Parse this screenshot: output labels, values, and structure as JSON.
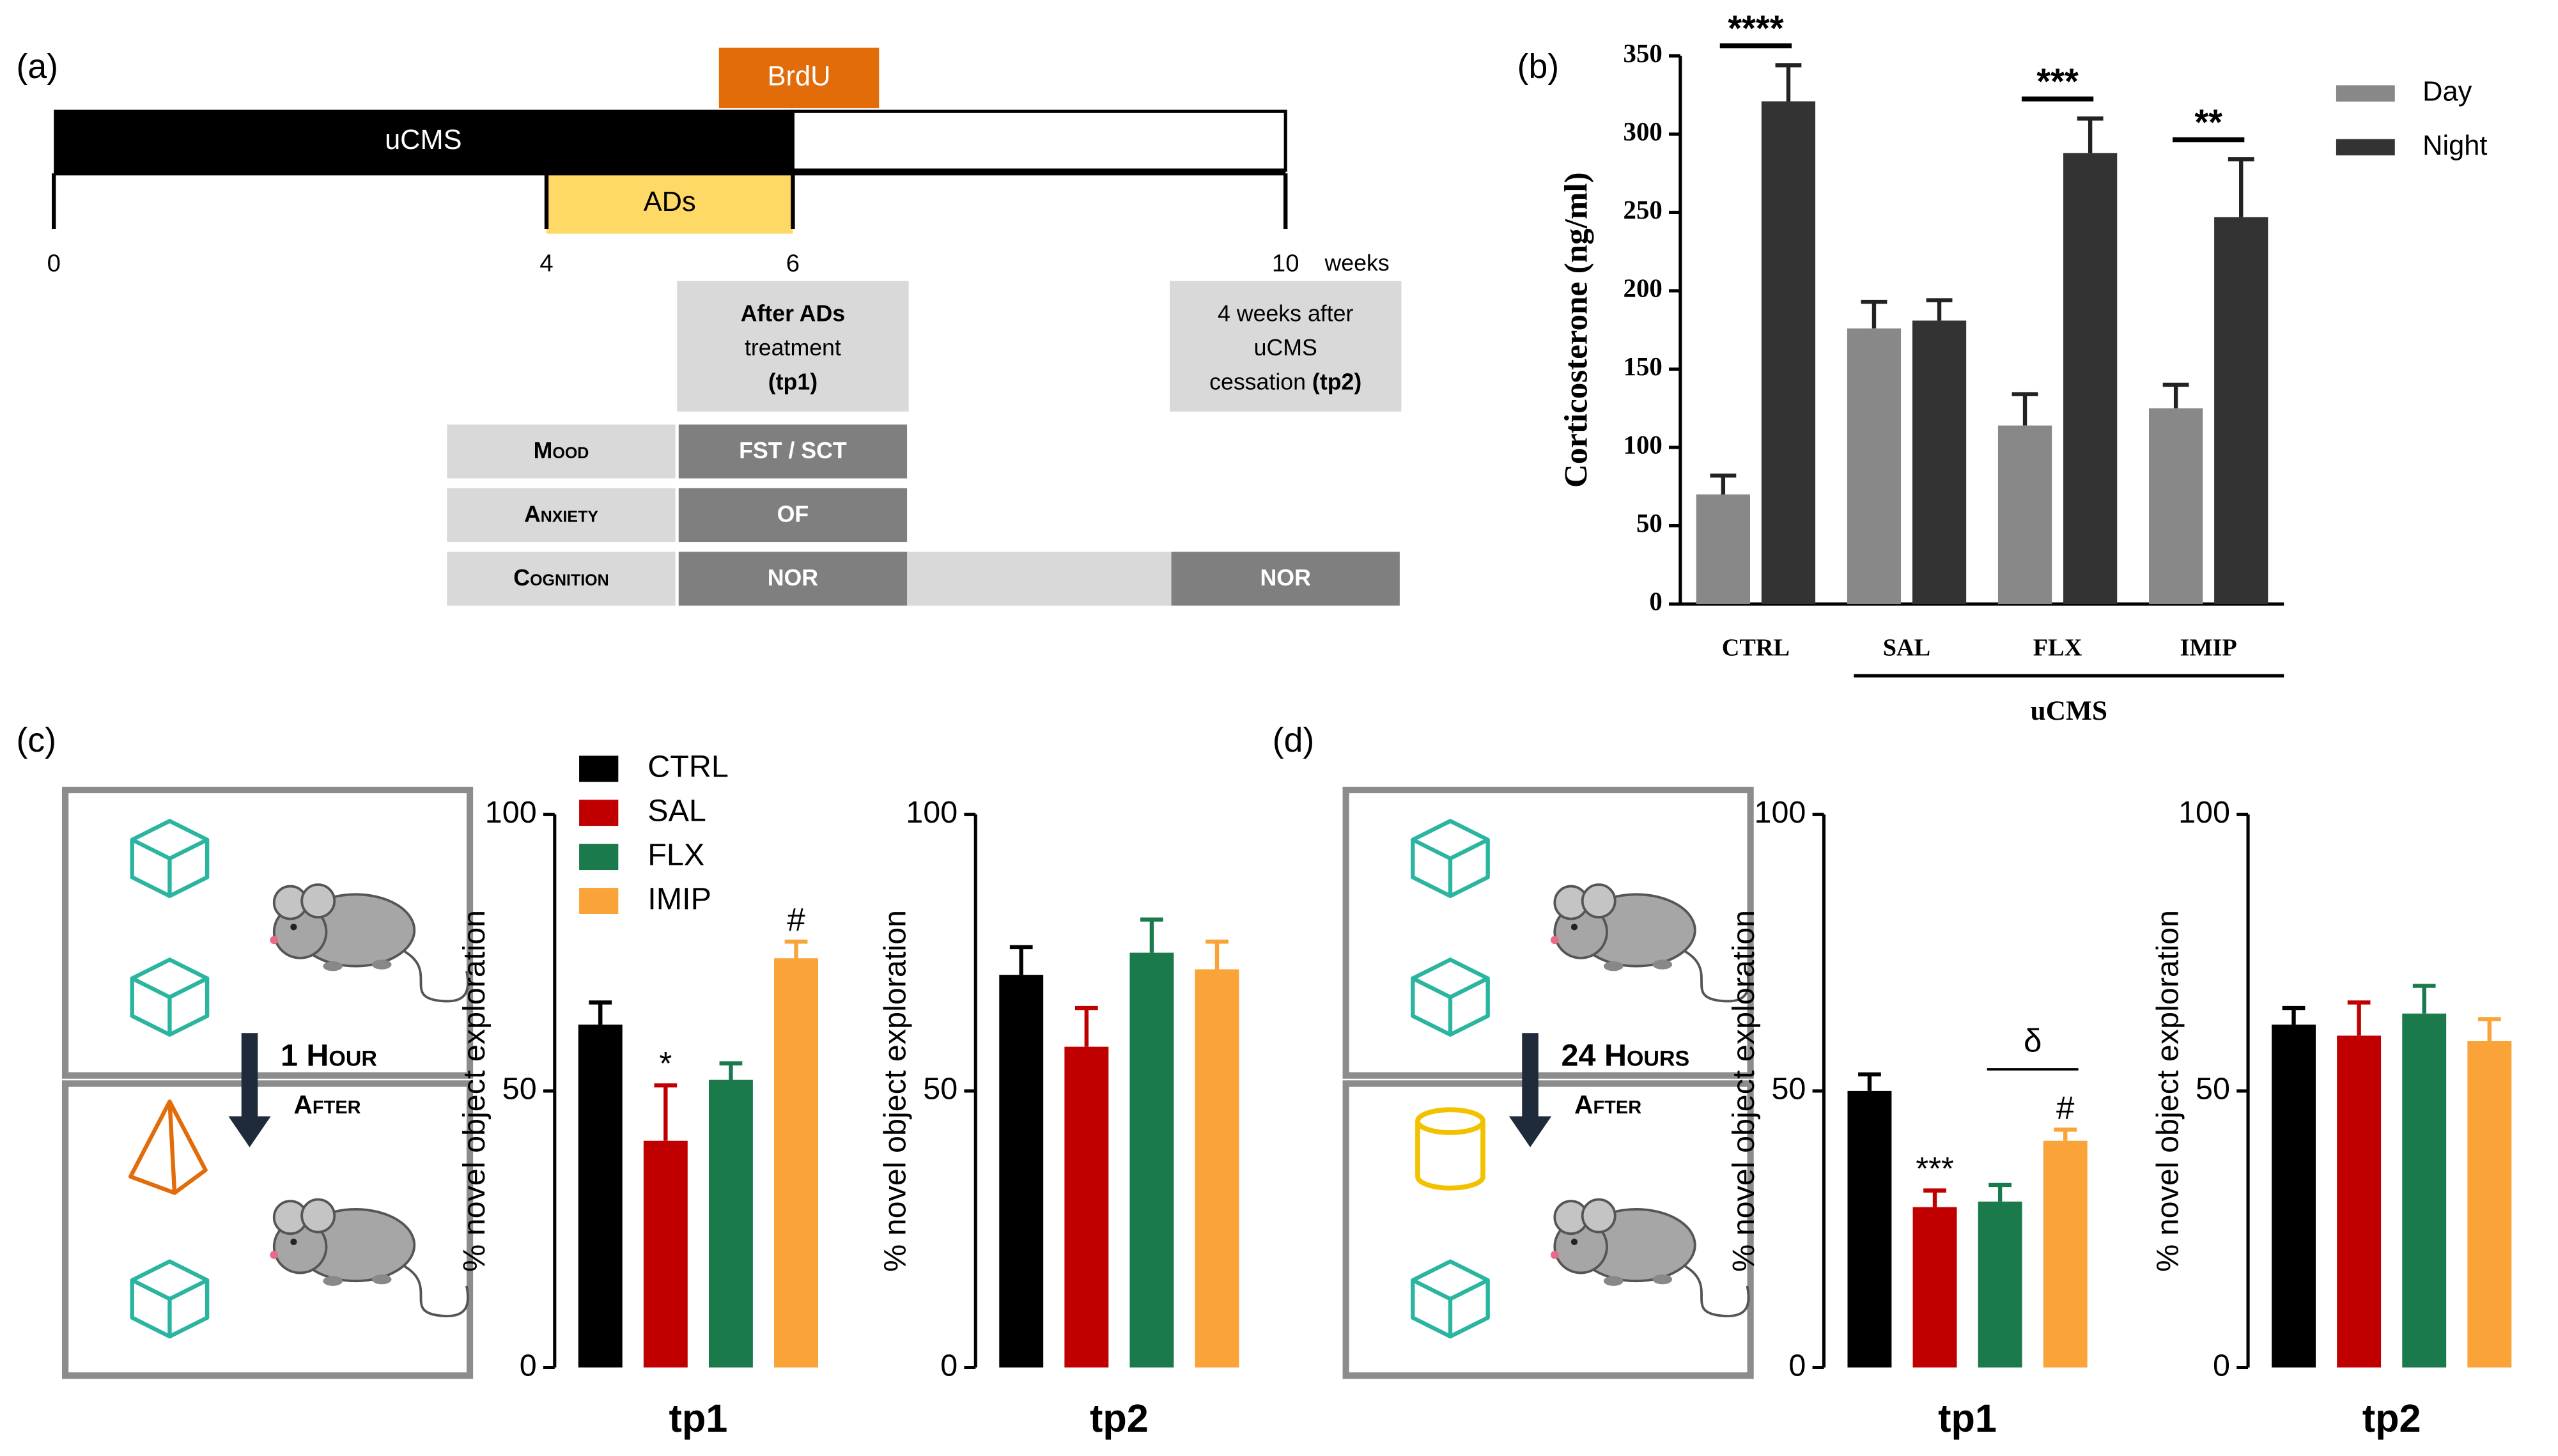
{
  "panel_labels": [
    "(a)",
    "(b)",
    "(c)",
    "(d)"
  ],
  "timeline": {
    "bars": [
      {
        "label": "uCMS",
        "start": 0,
        "end": 6,
        "color": "#000000",
        "text_color": "#ffffff"
      },
      {
        "label": "BrdU",
        "start": 5.4,
        "end": 6.7,
        "color": "#e36c0a",
        "text_color": "#ffffff"
      },
      {
        "label": "ADs",
        "start": 4,
        "end": 6,
        "color": "#ffd966",
        "text_color": "#000000"
      }
    ],
    "ticks": [
      0,
      4,
      6,
      10
    ],
    "unit": "weeks",
    "timepoints": [
      {
        "at": 6,
        "lines": [
          [
            {
              "text": "After ADs",
              "bold": true
            }
          ],
          [
            {
              "text": "treatment",
              "bold": false
            }
          ],
          [
            {
              "text": "(tp1)",
              "bold": true
            }
          ]
        ]
      },
      {
        "at": 10,
        "lines": [
          [
            {
              "text": "4 weeks after",
              "bold": false
            }
          ],
          [
            {
              "text": "uCMS",
              "bold": false
            }
          ],
          [
            {
              "text": "cessation ",
              "bold": false
            },
            {
              "text": "(tp2)",
              "bold": true
            }
          ]
        ]
      }
    ],
    "tests": [
      {
        "domain": "Mood",
        "tests": [
          "FST / SCT",
          null
        ]
      },
      {
        "domain": "Anxiety",
        "tests": [
          "OF",
          null
        ]
      },
      {
        "domain": "Cognition",
        "tests": [
          "NOR",
          "NOR"
        ]
      }
    ]
  },
  "protocols": [
    {
      "delay": "1 Hour",
      "after": "After",
      "novel": "pyramid"
    },
    {
      "delay": "24 Hours",
      "after": "After",
      "novel": "cylinder"
    }
  ],
  "chart_data": [
    {
      "type": "bar",
      "ylabel": "Corticosterone (ng/ml)",
      "categories": [
        "CTRL",
        "SAL",
        "FLX",
        "IMIP"
      ],
      "series": [
        {
          "name": "Day",
          "color": "#888888",
          "values": [
            70,
            176,
            114,
            125
          ],
          "errors": [
            12,
            17,
            20,
            15
          ]
        },
        {
          "name": "Night",
          "color": "#333333",
          "values": [
            321,
            181,
            288,
            247
          ],
          "errors": [
            23,
            13,
            22,
            37
          ]
        }
      ],
      "ylim": [
        0,
        350
      ],
      "yticks": [
        0,
        50,
        100,
        150,
        200,
        250,
        300,
        350
      ],
      "significance": [
        "****",
        null,
        "***",
        "**"
      ],
      "group_label": "uCMS",
      "group_members": [
        false,
        true,
        true,
        true
      ]
    },
    {
      "type": "bar",
      "ylabel": "% novel object exploration",
      "xlabel": "tp1",
      "categories": [
        "CTRL",
        "SAL",
        "FLX",
        "IMIP"
      ],
      "colors": [
        "#000000",
        "#c00000",
        "#1a7a4c",
        "#f9a339"
      ],
      "values": [
        62,
        41,
        52,
        74
      ],
      "errors": [
        4,
        10,
        3,
        3
      ],
      "annotations": [
        null,
        "*",
        null,
        "#"
      ],
      "ylim": [
        0,
        100
      ],
      "yticks": [
        0,
        50,
        100
      ]
    },
    {
      "type": "bar",
      "ylabel": "% novel object exploration",
      "xlabel": "tp2",
      "colors": [
        "#000000",
        "#c00000",
        "#1a7a4c",
        "#f9a339"
      ],
      "values": [
        71,
        58,
        75,
        72
      ],
      "errors": [
        5,
        7,
        6,
        5
      ],
      "ylim": [
        0,
        100
      ],
      "yticks": [
        0,
        50,
        100
      ]
    },
    {
      "type": "bar",
      "ylabel": "% novel object exploration",
      "xlabel": "tp1",
      "colors": [
        "#000000",
        "#c00000",
        "#1a7a4c",
        "#f9a339"
      ],
      "values": [
        50,
        29,
        30,
        41
      ],
      "errors": [
        3,
        3,
        3,
        2
      ],
      "annotations": [
        null,
        "***",
        null,
        "#"
      ],
      "bracket": {
        "label": "δ",
        "members": [
          false,
          false,
          true,
          true
        ]
      },
      "ylim": [
        0,
        100
      ],
      "yticks": [
        0,
        50,
        100
      ]
    },
    {
      "type": "bar",
      "ylabel": "% novel object exploration",
      "xlabel": "tp2",
      "colors": [
        "#000000",
        "#c00000",
        "#1a7a4c",
        "#f9a339"
      ],
      "values": [
        62,
        60,
        64,
        59
      ],
      "errors": [
        3,
        6,
        5,
        4
      ],
      "ylim": [
        0,
        100
      ],
      "yticks": [
        0,
        50,
        100
      ]
    }
  ]
}
